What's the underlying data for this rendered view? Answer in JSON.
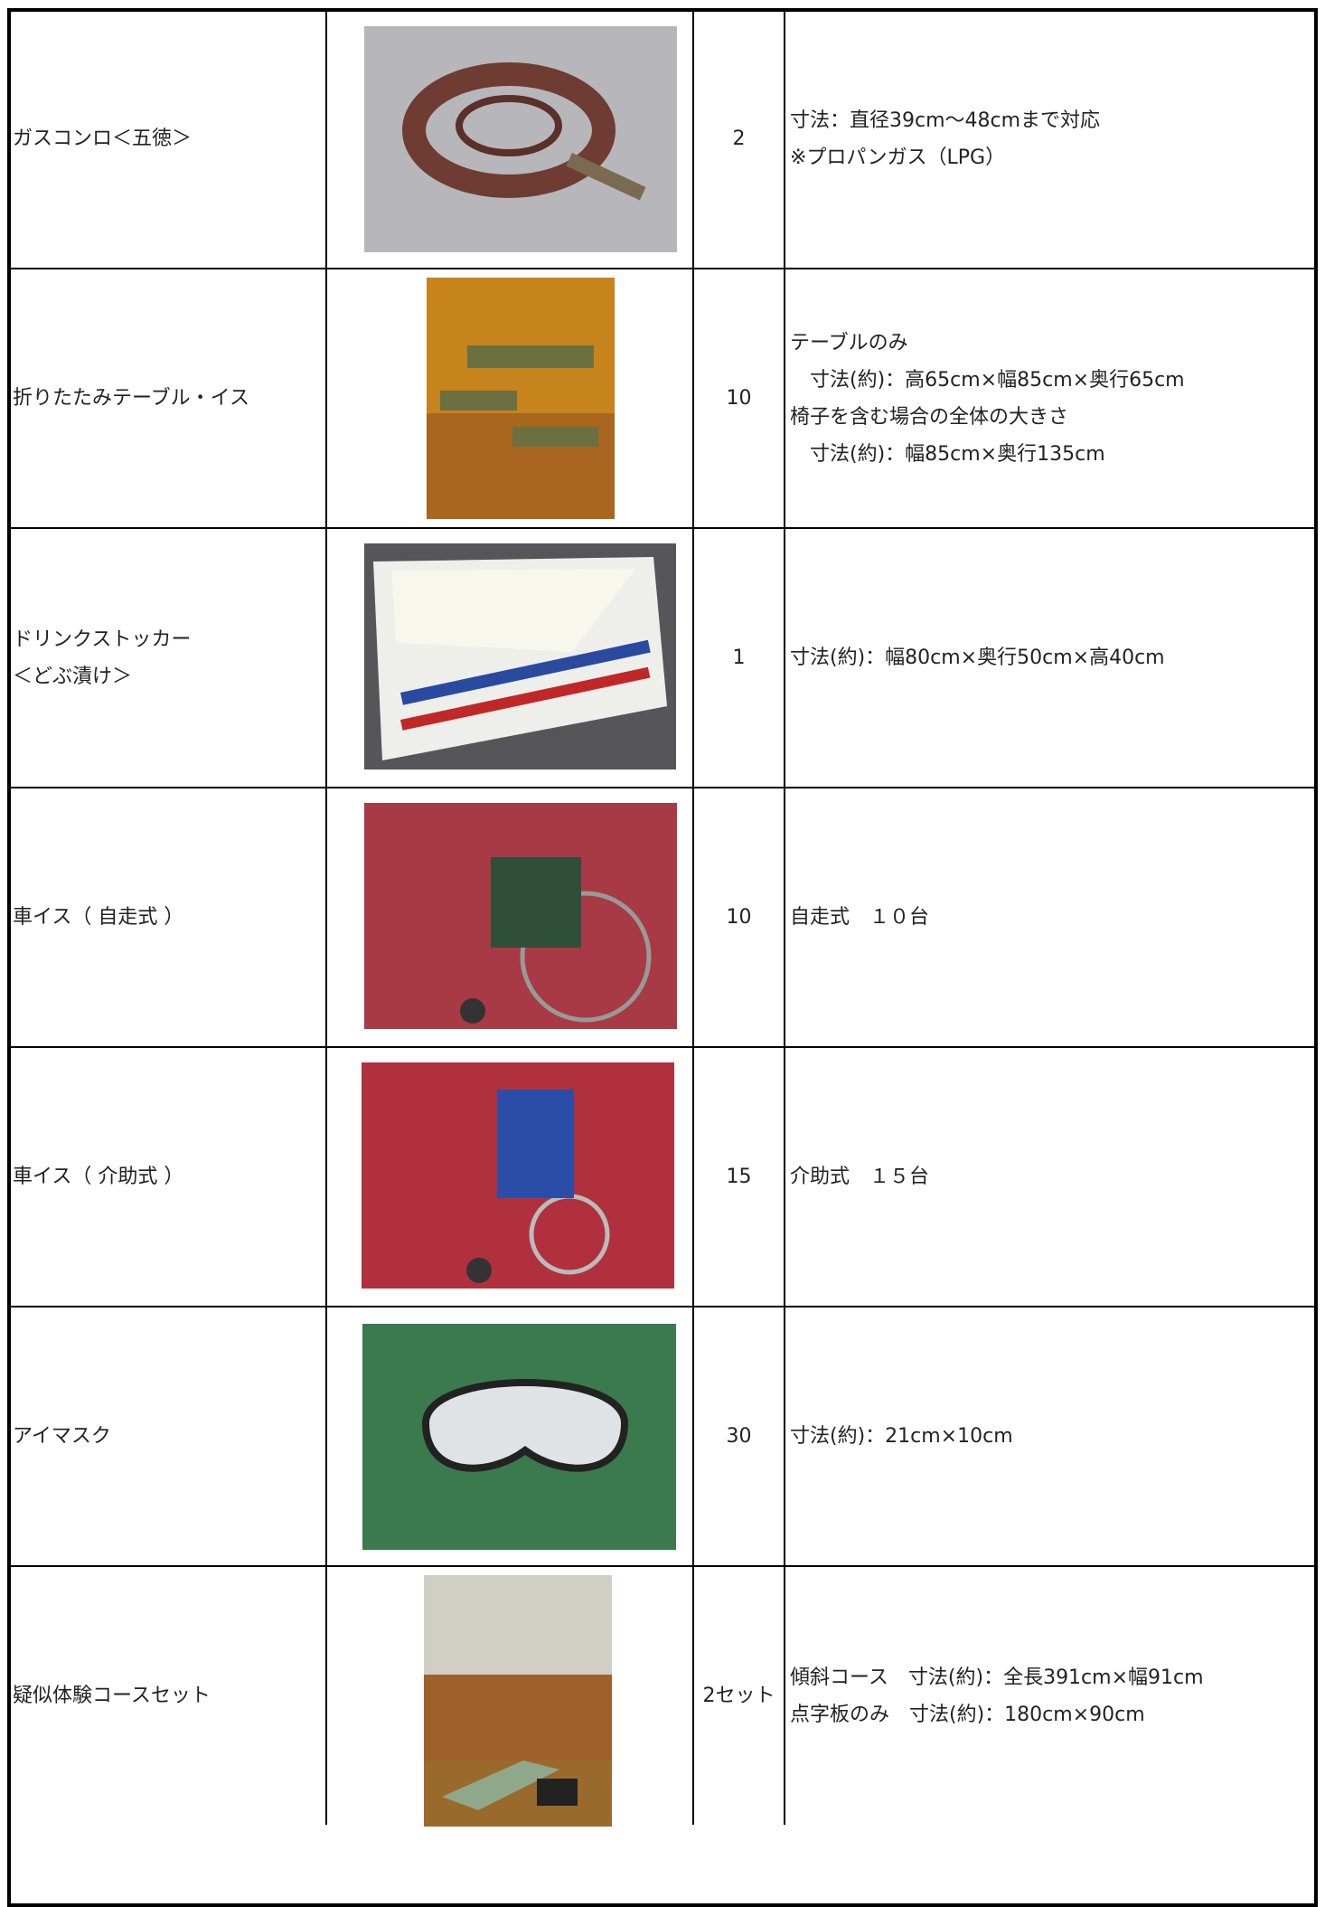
{
  "table": {
    "rows": [
      {
        "name": [
          "ガスコンロ＜五徳＞"
        ],
        "quantity": "2",
        "description": [
          "寸法：直径39cm〜48cmまで対応",
          "※プロパンガス（LPG）"
        ]
      },
      {
        "name": [
          "折りたたみテーブル・イス"
        ],
        "quantity": "10",
        "description": [
          "テーブルのみ",
          "　寸法(約)：高65cm×幅85cm×奥行65cm",
          "椅子を含む場合の全体の大きさ",
          "　寸法(約)：幅85cm×奥行135cm"
        ]
      },
      {
        "name": [
          "ドリンクストッカー",
          "＜どぶ漬け＞"
        ],
        "quantity": "1",
        "description": [
          "寸法(約)：幅80cm×奥行50cm×高40cm"
        ]
      },
      {
        "name": [
          "車イス（ 自走式 ）"
        ],
        "quantity": "10",
        "description": [
          "自走式　１０台"
        ]
      },
      {
        "name": [
          "車イス（ 介助式 ）"
        ],
        "quantity": "15",
        "description": [
          "介助式　１５台"
        ]
      },
      {
        "name": [
          "アイマスク"
        ],
        "quantity": "30",
        "description": [
          "寸法(約)：21cm×10cm"
        ]
      },
      {
        "name": [
          "疑似体験コースセット"
        ],
        "quantity": "2セット",
        "description": [
          "傾斜コース　寸法(約)：全長391cm×幅91cm",
          "点字板のみ　寸法(約)：180cm×90cm"
        ]
      }
    ]
  }
}
